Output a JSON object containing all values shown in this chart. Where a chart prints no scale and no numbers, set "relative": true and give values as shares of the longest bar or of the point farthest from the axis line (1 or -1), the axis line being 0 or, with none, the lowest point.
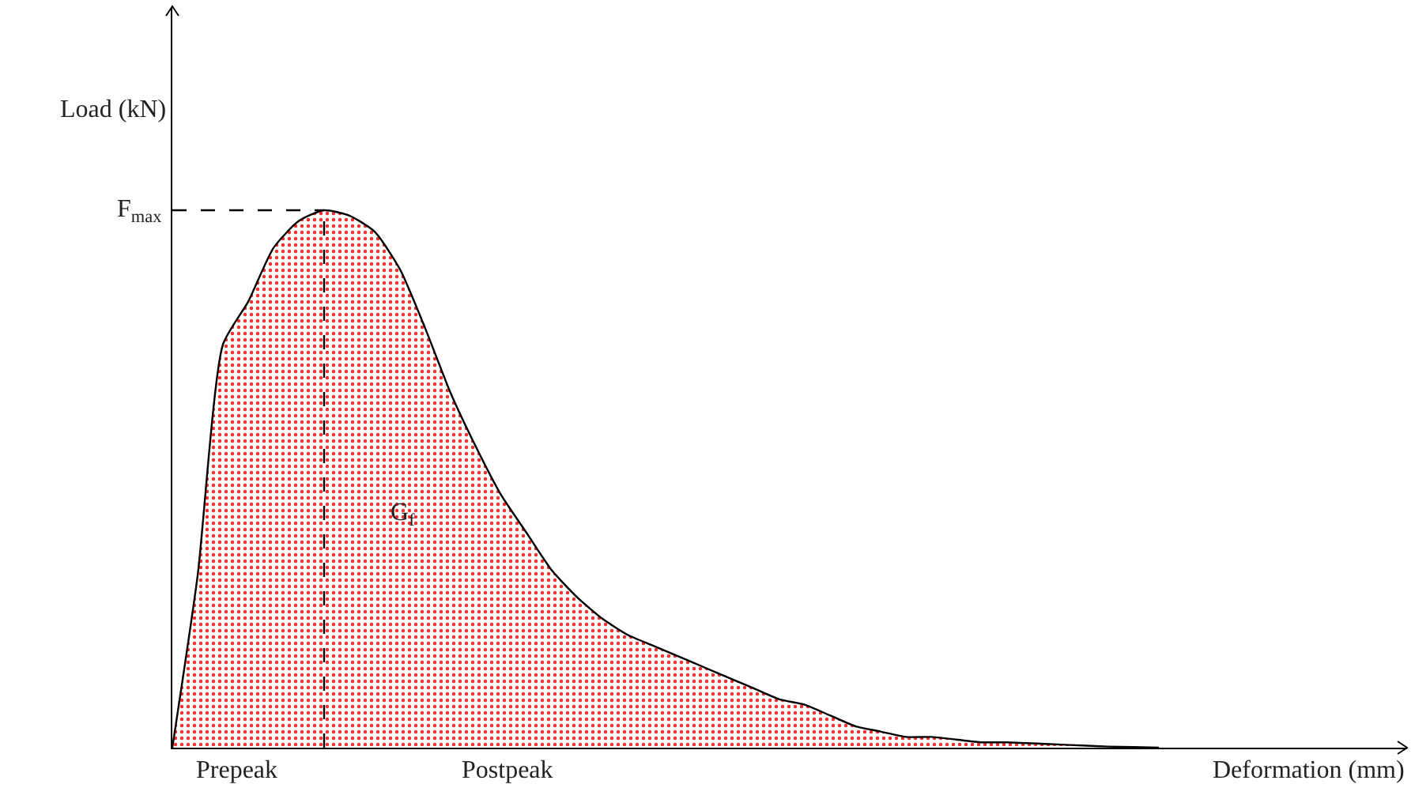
{
  "chart_data": {
    "type": "area",
    "relative": true,
    "xlabel": "Deformation (mm)",
    "ylabel": "Load (kN)",
    "categories": [
      null,
      null,
      null,
      null,
      null,
      null,
      null,
      null,
      null,
      null,
      null,
      null,
      null,
      null,
      null,
      null,
      null,
      null,
      null,
      null,
      null,
      null,
      null,
      null,
      null,
      null,
      null,
      null,
      null,
      null,
      null,
      null,
      null,
      null,
      null,
      null,
      null,
      null,
      null,
      null,
      null,
      null,
      null,
      null,
      null,
      null,
      null,
      null,
      null
    ],
    "series": [
      {
        "color": "#e8322e",
        "values": [
          0,
          0.32,
          0.75,
          0.83,
          0.93,
          0.98,
          1,
          0.99,
          0.96,
          0.89,
          0.78,
          0.66,
          0.56,
          0.47,
          0.4,
          0.33,
          0.28,
          0.24,
          0.21,
          0.19,
          0.17,
          0.15,
          0.13,
          0.11,
          0.09,
          0.08,
          0.06,
          0.04,
          0.03,
          0.02,
          0.02,
          0.015,
          0.01,
          0.01,
          0.008,
          0.006,
          0.004,
          0.002,
          0.001,
          0,
          null,
          null,
          null,
          null,
          null,
          null,
          null,
          null,
          null
        ]
      }
    ],
    "ref_lines": [
      {
        "axis": "y",
        "value": 1,
        "label": "F$_{max}$",
        "line_style": "dashed",
        "color": "#000000"
      }
    ],
    "annotations": [
      "G$_{f}$",
      "Prepeak",
      "Postpeak"
    ],
    "grid": false,
    "marker": "none",
    "line_style": "solid"
  }
}
